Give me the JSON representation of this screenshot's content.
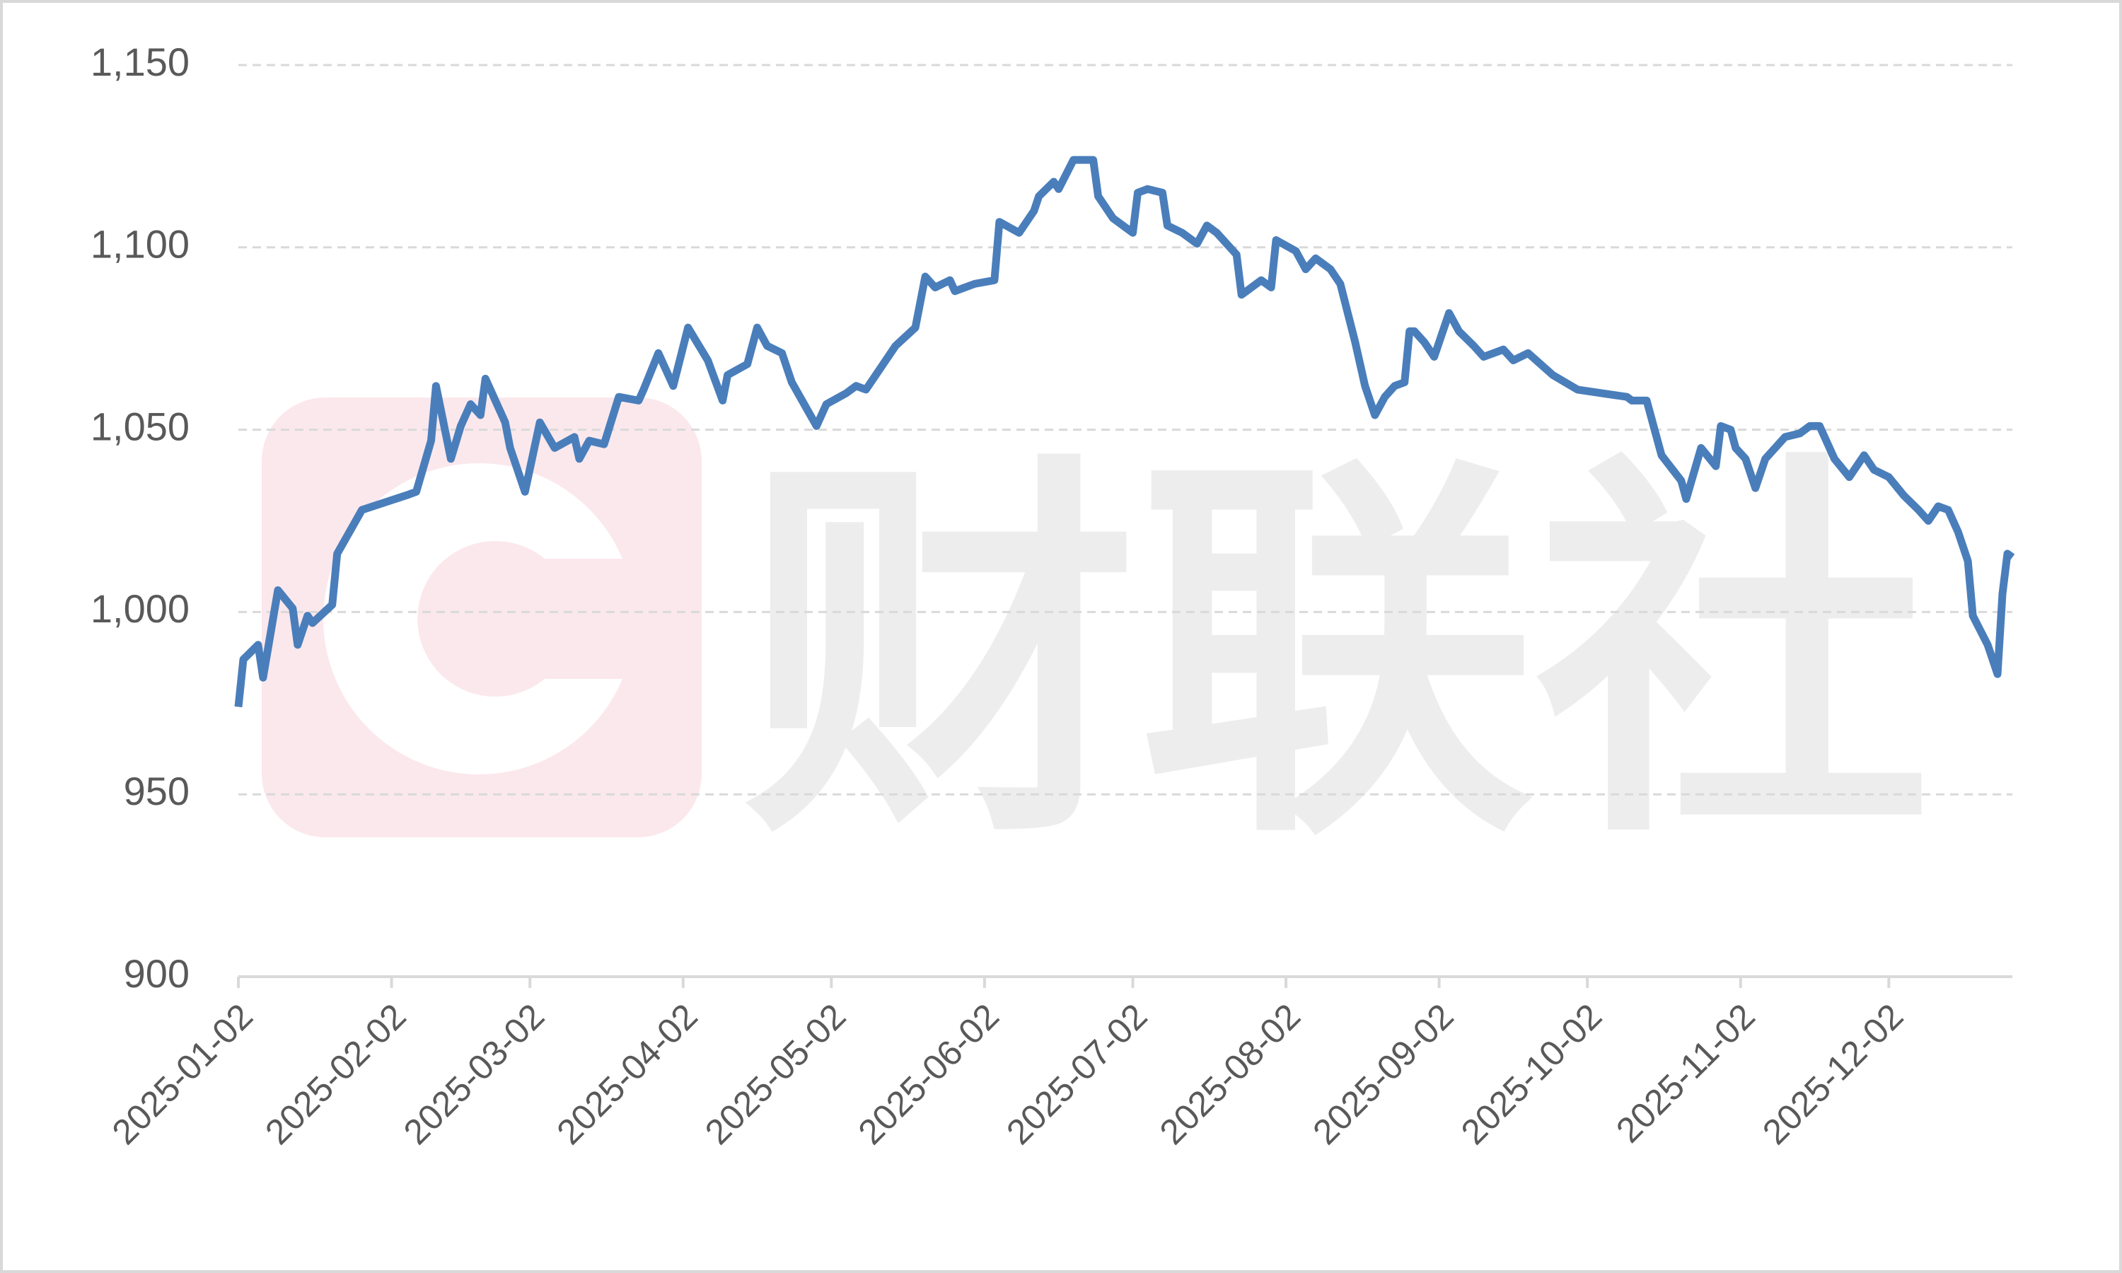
{
  "chart_data": {
    "type": "line",
    "watermark": "财联社",
    "x": [
      "2025-01-02",
      "2025-01-03",
      "2025-01-06",
      "2025-01-07",
      "2025-01-10",
      "2025-01-13",
      "2025-01-14",
      "2025-01-16",
      "2025-01-17",
      "2025-01-21",
      "2025-01-22",
      "2025-01-27",
      "2025-02-05",
      "2025-02-07",
      "2025-02-10",
      "2025-02-11",
      "2025-02-14",
      "2025-02-16",
      "2025-02-18",
      "2025-02-20",
      "2025-02-21",
      "2025-02-25",
      "2025-02-26",
      "2025-03-01",
      "2025-03-04",
      "2025-03-07",
      "2025-03-11",
      "2025-03-12",
      "2025-03-14",
      "2025-03-17",
      "2025-03-20",
      "2025-03-24",
      "2025-03-25",
      "2025-03-28",
      "2025-03-31",
      "2025-04-03",
      "2025-04-07",
      "2025-04-10",
      "2025-04-11",
      "2025-04-15",
      "2025-04-17",
      "2025-04-19",
      "2025-04-22",
      "2025-04-24",
      "2025-04-29",
      "2025-05-01",
      "2025-05-05",
      "2025-05-07",
      "2025-05-09",
      "2025-05-13",
      "2025-05-15",
      "2025-05-19",
      "2025-05-21",
      "2025-05-23",
      "2025-05-26",
      "2025-05-27",
      "2025-05-31",
      "2025-06-04",
      "2025-06-05",
      "2025-06-09",
      "2025-06-12",
      "2025-06-13",
      "2025-06-16",
      "2025-06-17",
      "2025-06-20",
      "2025-06-24",
      "2025-06-25",
      "2025-06-28",
      "2025-07-02",
      "2025-07-03",
      "2025-07-05",
      "2025-07-08",
      "2025-07-09",
      "2025-07-12",
      "2025-07-15",
      "2025-07-17",
      "2025-07-19",
      "2025-07-23",
      "2025-07-24",
      "2025-07-25",
      "2025-07-28",
      "2025-07-30",
      "2025-07-31",
      "2025-08-04",
      "2025-08-06",
      "2025-08-08",
      "2025-08-11",
      "2025-08-13",
      "2025-08-16",
      "2025-08-18",
      "2025-08-20",
      "2025-08-22",
      "2025-08-24",
      "2025-08-26",
      "2025-08-27",
      "2025-08-28",
      "2025-08-30",
      "2025-09-01",
      "2025-09-04",
      "2025-09-06",
      "2025-09-09",
      "2025-09-11",
      "2025-09-15",
      "2025-09-17",
      "2025-09-20",
      "2025-09-25",
      "2025-09-30",
      "2025-10-10",
      "2025-10-11",
      "2025-10-14",
      "2025-10-17",
      "2025-10-21",
      "2025-10-22",
      "2025-10-25",
      "2025-10-28",
      "2025-10-29",
      "2025-10-31",
      "2025-11-01",
      "2025-11-03",
      "2025-11-05",
      "2025-11-07",
      "2025-11-11",
      "2025-11-14",
      "2025-11-16",
      "2025-11-18",
      "2025-11-21",
      "2025-11-24",
      "2025-11-27",
      "2025-11-29",
      "2025-12-02",
      "2025-12-05",
      "2025-12-08",
      "2025-12-10",
      "2025-12-12",
      "2025-12-14",
      "2025-12-16",
      "2025-12-18",
      "2025-12-19",
      "2025-12-22",
      "2025-12-24",
      "2025-12-25",
      "2025-12-26",
      "2025-12-27"
    ],
    "series": [
      {
        "name": null,
        "color": "#4a7ebb",
        "values": [
          974,
          987,
          991,
          982,
          1006,
          1001,
          991,
          999,
          997,
          1002,
          1016,
          1028,
          1032,
          1033,
          1047,
          1062,
          1042,
          1051,
          1057,
          1054,
          1064,
          1052,
          1045,
          1033,
          1052,
          1045,
          1048,
          1042,
          1047,
          1046,
          1059,
          1058,
          1061,
          1071,
          1062,
          1078,
          1069,
          1058,
          1065,
          1068,
          1078,
          1073,
          1071,
          1063,
          1051,
          1057,
          1060,
          1062,
          1061,
          1069,
          1073,
          1078,
          1092,
          1089,
          1091,
          1088,
          1090,
          1091,
          1107,
          1104,
          1110,
          1114,
          1118,
          1116,
          1124,
          1124,
          1114,
          1108,
          1104,
          1115,
          1116,
          1115,
          1106,
          1104,
          1101,
          1106,
          1104,
          1098,
          1087,
          1088,
          1091,
          1089,
          1102,
          1099,
          1094,
          1097,
          1094,
          1090,
          1074,
          1062,
          1054,
          1059,
          1062,
          1063,
          1077,
          1077,
          1074,
          1070,
          1082,
          1077,
          1073,
          1070,
          1072,
          1069,
          1071,
          1065,
          1061,
          1059,
          1058,
          1058,
          1043,
          1036,
          1031,
          1045,
          1040,
          1051,
          1050,
          1045,
          1042,
          1034,
          1042,
          1048,
          1049,
          1051,
          1051,
          1042,
          1037,
          1043,
          1039,
          1037,
          1032,
          1028,
          1025,
          1029,
          1028,
          1022,
          1014,
          999,
          991,
          983,
          1005,
          1016,
          1015
        ]
      }
    ],
    "xlim": [
      "2025-01-02",
      "2025-12-27"
    ],
    "xticks": [
      "2025-01-02",
      "2025-02-02",
      "2025-03-02",
      "2025-04-02",
      "2025-05-02",
      "2025-06-02",
      "2025-07-02",
      "2025-08-02",
      "2025-09-02",
      "2025-10-02",
      "2025-11-02",
      "2025-12-02"
    ],
    "ylim": [
      900,
      1150
    ],
    "yticks": [
      900,
      950,
      {
        "value": 1000,
        "label": "1,000"
      },
      {
        "value": 1050,
        "label": "1,050"
      },
      {
        "value": 1100,
        "label": "1,100"
      },
      {
        "value": 1150,
        "label": "1,150"
      }
    ],
    "grid": true
  }
}
